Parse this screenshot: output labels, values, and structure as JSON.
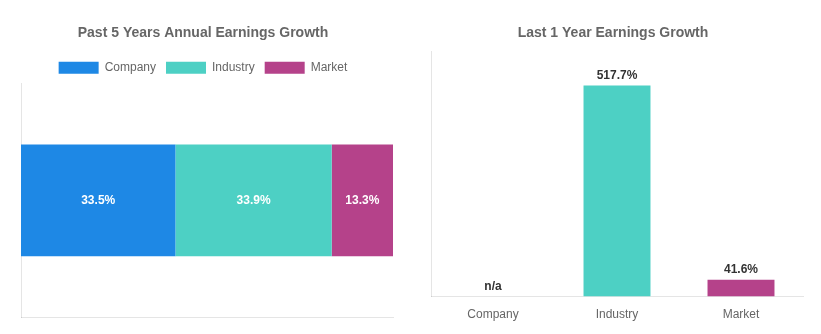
{
  "chart_data": [
    {
      "type": "bar",
      "orientation": "horizontal",
      "stacked": true,
      "title": "Past 5 Years Annual Earnings Growth",
      "categories": [
        null
      ],
      "series": [
        {
          "name": "Company",
          "color": "#1e88e5",
          "values": [
            33.5
          ],
          "value_labels": [
            "33.5%"
          ]
        },
        {
          "name": "Industry",
          "color": "#4dd0c4",
          "values": [
            33.9
          ],
          "value_labels": [
            "33.9%"
          ]
        },
        {
          "name": "Market",
          "color": "#b5428a",
          "values": [
            13.3
          ],
          "value_labels": [
            "13.3%"
          ]
        }
      ],
      "xlim": [
        0,
        80.7
      ],
      "grid": false,
      "legend": "top",
      "data_labels": true,
      "tick_labels": false
    },
    {
      "type": "bar",
      "title": "Last 1 Year Earnings Growth",
      "categories": [
        "Company",
        "Industry",
        "Market"
      ],
      "values": [
        null,
        517.7,
        41.6
      ],
      "value_labels": [
        "n/a",
        "517.7%",
        "41.6%"
      ],
      "colors": [
        "#1e88e5",
        "#4dd0c4",
        "#b5428a"
      ],
      "ylim": [
        0,
        600
      ],
      "grid": false,
      "data_labels": true,
      "tick_labels": "x"
    }
  ]
}
